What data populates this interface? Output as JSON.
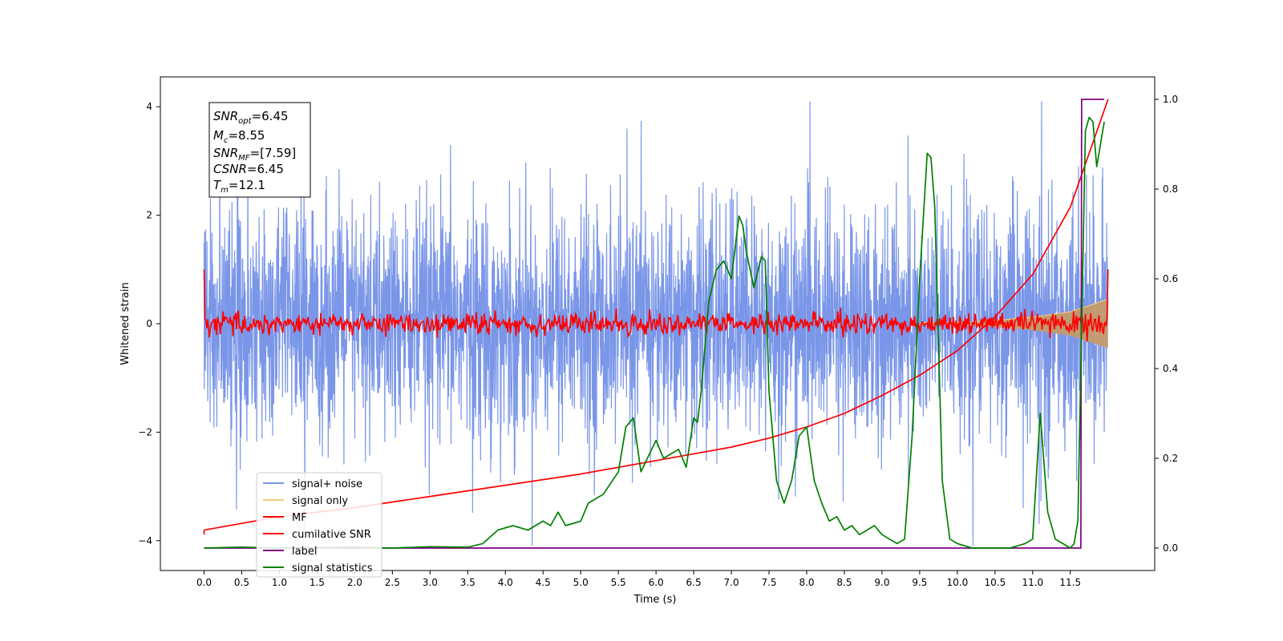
{
  "chart_data": {
    "type": "line",
    "xlabel": "Time (s)",
    "ylabel": "Whitened strain",
    "xlim": [
      -0.58,
      12.62
    ],
    "ylim_left": [
      -4.55,
      4.55
    ],
    "ylim_right": [
      -0.05,
      1.05
    ],
    "x_ticks": [
      "0.0",
      "0.5",
      "1.0",
      "1.5",
      "2.0",
      "2.5",
      "3.0",
      "3.5",
      "4.0",
      "4.5",
      "5.0",
      "5.5",
      "6.0",
      "6.5",
      "7.0",
      "7.5",
      "8.0",
      "8.5",
      "9.0",
      "9.5",
      "10.0",
      "10.5",
      "11.0",
      "11.5"
    ],
    "y_ticks_left": [
      "−4",
      "−2",
      "0",
      "2",
      "4"
    ],
    "y_ticks_right": [
      "0.0",
      "0.2",
      "0.4",
      "0.6",
      "0.8",
      "1.0"
    ],
    "grid": false,
    "legend_position": "lower-left",
    "annotation": [
      {
        "base": "SNR",
        "sub": "opt",
        "text": "=6.45"
      },
      {
        "base": "M",
        "sub": "c",
        "text": "=8.55"
      },
      {
        "base": "SNR",
        "sub": "MF",
        "text": "=[7.59]"
      },
      {
        "base": "CSNR",
        "sub": "",
        "text": "=6.45"
      },
      {
        "base": "T",
        "sub": "m",
        "text": "=12.1"
      }
    ],
    "series": [
      {
        "name": "signal+ noise",
        "color": "#7a96e8",
        "axis": "left",
        "description_values": "noise band, amplitude ~ ±2.5 with spikes to ±4.1",
        "x_range": [
          0.0,
          12.0
        ]
      },
      {
        "name": "signal only",
        "color": "#f8c97a",
        "axis": "left",
        "envelope": {
          "x": [
            0,
            10,
            10.5,
            11,
            11.5,
            12.0
          ],
          "amp": [
            0.0,
            0.02,
            0.06,
            0.12,
            0.22,
            0.45
          ]
        }
      },
      {
        "name": "MF",
        "color": "#ff0000",
        "axis": "left",
        "description_values": "noisy trace around 0, amplitude ~ ±0.3, starts at 1.0",
        "x_range": [
          0.0,
          12.0
        ]
      },
      {
        "name": "cumilative SNR",
        "color": "#ff0000",
        "axis": "right",
        "x": [
          0.0,
          1.0,
          2.0,
          3.0,
          4.0,
          5.0,
          6.0,
          7.0,
          7.5,
          8.0,
          8.5,
          9.0,
          9.5,
          10.0,
          10.5,
          11.0,
          11.5,
          12.0
        ],
        "y": [
          0.04,
          0.07,
          0.09,
          0.115,
          0.14,
          0.165,
          0.195,
          0.225,
          0.245,
          0.27,
          0.3,
          0.34,
          0.385,
          0.44,
          0.515,
          0.61,
          0.76,
          1.0
        ]
      },
      {
        "name": "label",
        "color": "#800080",
        "axis": "right",
        "x": [
          0.0,
          11.64,
          11.65,
          11.95
        ],
        "y": [
          0.0,
          0.0,
          1.0,
          1.0
        ]
      },
      {
        "name": "signal statistics",
        "color": "#008000",
        "axis": "right",
        "x": [
          0.0,
          0.5,
          1.0,
          1.5,
          2.0,
          2.5,
          3.0,
          3.5,
          3.7,
          3.9,
          4.1,
          4.3,
          4.5,
          4.6,
          4.7,
          4.8,
          5.0,
          5.1,
          5.3,
          5.5,
          5.6,
          5.7,
          5.8,
          6.0,
          6.1,
          6.2,
          6.3,
          6.4,
          6.5,
          6.55,
          6.6,
          6.7,
          6.8,
          6.9,
          7.0,
          7.1,
          7.15,
          7.2,
          7.3,
          7.4,
          7.45,
          7.5,
          7.6,
          7.7,
          7.8,
          7.9,
          8.0,
          8.1,
          8.2,
          8.3,
          8.4,
          8.5,
          8.6,
          8.7,
          8.8,
          8.9,
          9.0,
          9.1,
          9.2,
          9.3,
          9.4,
          9.5,
          9.6,
          9.65,
          9.7,
          9.8,
          9.9,
          10.0,
          10.2,
          10.5,
          10.7,
          10.9,
          11.0,
          11.1,
          11.2,
          11.3,
          11.4,
          11.5,
          11.55,
          11.6,
          11.7,
          11.75,
          11.8,
          11.85,
          11.9,
          11.95
        ],
        "y": [
          0.0,
          0.002,
          0.0,
          0.001,
          0.002,
          0.0,
          0.003,
          0.002,
          0.01,
          0.04,
          0.05,
          0.04,
          0.06,
          0.05,
          0.08,
          0.05,
          0.06,
          0.1,
          0.12,
          0.17,
          0.27,
          0.29,
          0.17,
          0.24,
          0.2,
          0.21,
          0.22,
          0.18,
          0.29,
          0.28,
          0.35,
          0.55,
          0.62,
          0.64,
          0.6,
          0.74,
          0.72,
          0.66,
          0.58,
          0.65,
          0.64,
          0.35,
          0.15,
          0.1,
          0.15,
          0.25,
          0.27,
          0.15,
          0.1,
          0.06,
          0.07,
          0.04,
          0.05,
          0.03,
          0.04,
          0.05,
          0.03,
          0.02,
          0.01,
          0.02,
          0.25,
          0.6,
          0.88,
          0.87,
          0.76,
          0.15,
          0.02,
          0.01,
          0.0,
          0.0,
          0.0,
          0.01,
          0.02,
          0.3,
          0.08,
          0.02,
          0.01,
          0.0,
          0.01,
          0.06,
          0.93,
          0.96,
          0.95,
          0.85,
          0.9,
          0.95
        ]
      }
    ]
  }
}
